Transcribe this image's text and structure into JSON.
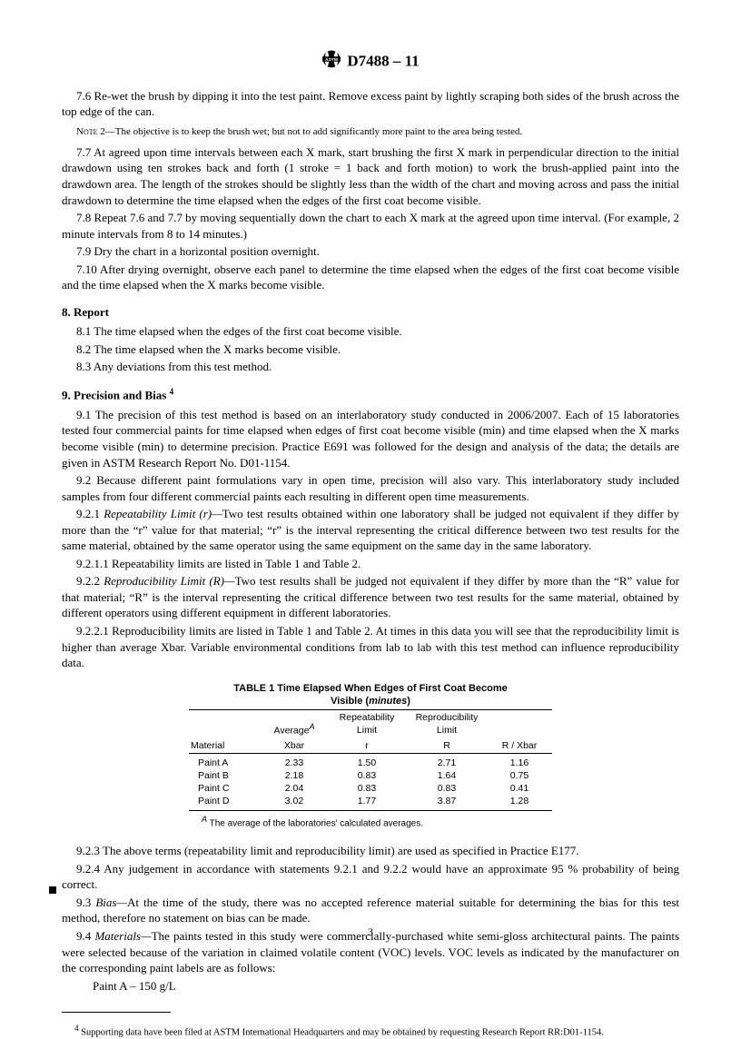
{
  "header": {
    "designation": "D7488 – 11"
  },
  "p76": "7.6  Re-wet the brush by dipping it into the test paint. Remove excess paint by lightly scraping both sides of the brush across the top edge of the can.",
  "note2_label": "Note  2—",
  "note2": "The objective is to keep the brush wet; but not to add significantly more paint to the area being tested.",
  "p77": "7.7  At agreed upon time intervals between each X mark, start brushing the first X mark in perpendicular direction to the initial drawdown using ten strokes back and forth (1 stroke = 1 back and forth motion) to work the brush-applied paint into the drawdown area. The length of the strokes should be slightly less than the width of the chart and moving across and pass the initial drawdown to determine the time elapsed when the edges of the first coat become visible.",
  "p78": "7.8  Repeat 7.6 and 7.7 by moving sequentially down the chart to each X mark at the agreed upon time interval. (For example, 2 minute intervals from 8 to 14 minutes.)",
  "p79": "7.9  Dry the chart in a horizontal position overnight.",
  "p710": "7.10  After drying overnight, observe each panel to determine the time elapsed when the edges of the first coat become visible and the time elapsed when the X marks become visible.",
  "s8": "8.  Report",
  "p81": "8.1  The time elapsed when the edges of the first coat become visible.",
  "p82": "8.2  The time elapsed when the X marks become visible.",
  "p83": "8.3  Any deviations from this test method.",
  "s9_pre": "9.  Precision and Bias ",
  "s9_sup": "4",
  "p91": "9.1  The precision of this test method is based on an interlaboratory study conducted in 2006/2007. Each of 15 laboratories tested four commercial paints for time elapsed when edges of first coat become visible (min) and time elapsed when the X marks become visible (min) to determine precision. Practice E691 was followed for the design and analysis of the data; the details are given in ASTM Research Report No. D01-1154.",
  "p92": "9.2  Because different paint formulations vary in open time, precision will also vary. This interlaboratory study included samples from four different commercial paints each resulting in different open time measurements.",
  "p921_num": "9.2.1  ",
  "p921_term": "Repeatability Limit (r)—",
  "p921_body": "Two test results obtained within one laboratory shall be judged not equivalent if they differ by more than the “r” value for that material; “r” is the interval representing the critical difference between two test results for the same material, obtained by the same operator using the same equipment on the same day in the same laboratory.",
  "p9211": "9.2.1.1  Repeatability limits are listed in Table 1 and Table 2.",
  "p922_num": "9.2.2  ",
  "p922_term": "Reproducibility Limit (R)—",
  "p922_body": "Two test results shall be judged not equivalent if they differ by more than the “R” value for that material; “R” is the interval representing the critical difference between two test results for the same material, obtained by different operators using different equipment in different laboratories.",
  "p9221": "9.2.2.1  Reproducibility limits are listed in Table 1 and Table 2. At times in this data you will see that the reproducibility limit is higher than average Xbar. Variable environmental conditions from lab to lab with this test method can influence reproducibility data.",
  "table1": {
    "title_l1": "TABLE 1  Time Elapsed When Edges of First Coat Become",
    "title_l2": "Visible (",
    "title_l2_ital": "minutes",
    "title_l2_end": ")",
    "h_avg": "Average",
    "h_avg_sup": "A",
    "h_rep1": "Repeatability",
    "h_rep2": "Limit",
    "h_repro1": "Reproducibility",
    "h_repro2": "Limit",
    "h_material": "Material",
    "h_xbar": "Xbar",
    "h_r": "r",
    "h_R": "R",
    "h_ratio": "R / Xbar",
    "rows": [
      {
        "mat": "Paint A",
        "xbar": "2.33",
        "r": "1.50",
        "R": "2.71",
        "ratio": "1.16"
      },
      {
        "mat": "Paint B",
        "xbar": "2.18",
        "r": "0.83",
        "R": "1.64",
        "ratio": "0.75"
      },
      {
        "mat": "Paint C",
        "xbar": "2.04",
        "r": "0.83",
        "R": "0.83",
        "ratio": "0.41"
      },
      {
        "mat": "Paint D",
        "xbar": "3.02",
        "r": "1.77",
        "R": "3.87",
        "ratio": "1.28"
      }
    ],
    "footnote_sup": "A",
    "footnote": " The average of the laboratories' calculated averages."
  },
  "p923": "9.2.3  The above terms (repeatability limit and reproducibility limit) are used as specified in Practice E177.",
  "p924": "9.2.4  Any judgement in accordance with statements 9.2.1 and 9.2.2 would have an approximate 95 % probability of being correct.",
  "p93_num": "9.3  ",
  "p93_term": "Bias—",
  "p93_body": "At the time of the study, there was no accepted reference material suitable for determining the bias for this test method, therefore no statement on bias can be made.",
  "p94_num": "9.4  ",
  "p94_term": "Materials—",
  "p94_body": "The paints tested in this study were commercially-purchased white semi-gloss architectural paints. The paints were selected because of the variation in claimed volatile content (VOC) levels. VOC levels as indicated by the manufacturer on the corresponding paint labels are as follows:",
  "paintA": "Paint A – 150 g/L",
  "fn_sup": "4",
  "fn": " Supporting data have been filed at ASTM International Headquarters and may be obtained by requesting Research Report  RR:D01-1154.",
  "page_num": "3"
}
